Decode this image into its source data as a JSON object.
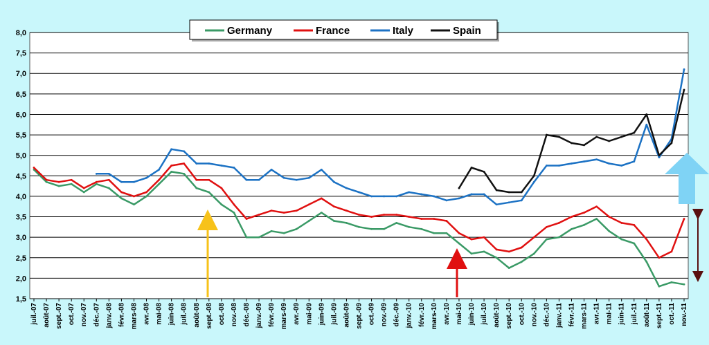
{
  "chart_data": {
    "type": "line",
    "grid": true,
    "legend_position": "top-center",
    "ylim": [
      1.5,
      8.0
    ],
    "yticks": [
      "1,5",
      "2,0",
      "2,5",
      "3,0",
      "3,5",
      "4,0",
      "4,5",
      "5,0",
      "5,5",
      "6,0",
      "6,5",
      "7,0",
      "7,5",
      "8,0"
    ],
    "categories": [
      "juil.-07",
      "août-07",
      "sept.-07",
      "oct.-07",
      "nov.-07",
      "déc.-07",
      "janv.-08",
      "févr.-08",
      "mars-08",
      "avr.-08",
      "mai-08",
      "juin-08",
      "juil.-08",
      "août-08",
      "sept.-08",
      "oct.-08",
      "nov.-08",
      "déc.-08",
      "janv.-09",
      "févr.-09",
      "mars-09",
      "avr.-09",
      "mai-09",
      "juin-09",
      "juil.-09",
      "août-09",
      "sept.-09",
      "oct.-09",
      "nov.-09",
      "déc.-09",
      "janv.-10",
      "févr.-10",
      "mars-10",
      "avr.-10",
      "mai-10",
      "juin-10",
      "juil.-10",
      "août-10",
      "sept.-10",
      "oct.-10",
      "nov.-10",
      "déc.-10",
      "janv.-11",
      "févr.-11",
      "mars-11",
      "avr.-11",
      "mai-11",
      "juin-11",
      "juil.-11",
      "août-11",
      "sept.-11",
      "oct.-11",
      "nov.-11"
    ],
    "series": [
      {
        "name": "Germany",
        "color": "#3a9a66",
        "values": [
          4.65,
          4.35,
          4.25,
          4.3,
          4.1,
          4.3,
          4.2,
          3.95,
          3.8,
          4.0,
          4.3,
          4.6,
          4.55,
          4.2,
          4.1,
          3.8,
          3.6,
          3.0,
          3.0,
          3.15,
          3.1,
          3.2,
          3.4,
          3.6,
          3.4,
          3.35,
          3.25,
          3.2,
          3.2,
          3.35,
          3.25,
          3.2,
          3.1,
          3.1,
          2.85,
          2.6,
          2.65,
          2.5,
          2.25,
          2.4,
          2.6,
          2.95,
          3.0,
          3.2,
          3.3,
          3.45,
          3.15,
          2.95,
          2.85,
          2.4,
          1.8,
          1.9,
          1.85
        ]
      },
      {
        "name": "France",
        "color": "#e01010",
        "values": [
          4.7,
          4.4,
          4.35,
          4.4,
          4.2,
          4.35,
          4.4,
          4.1,
          4.0,
          4.1,
          4.4,
          4.75,
          4.8,
          4.4,
          4.4,
          4.2,
          3.8,
          3.45,
          3.55,
          3.65,
          3.6,
          3.65,
          3.8,
          3.95,
          3.75,
          3.65,
          3.55,
          3.5,
          3.55,
          3.55,
          3.5,
          3.45,
          3.45,
          3.4,
          3.1,
          2.95,
          3.0,
          2.7,
          2.65,
          2.75,
          3.0,
          3.25,
          3.35,
          3.5,
          3.6,
          3.75,
          3.5,
          3.35,
          3.3,
          2.95,
          2.5,
          2.65,
          3.45
        ]
      },
      {
        "name": "Italy",
        "color": "#1c72c4",
        "values": [
          null,
          null,
          null,
          null,
          null,
          4.55,
          4.55,
          4.35,
          4.35,
          4.45,
          4.65,
          5.15,
          5.1,
          4.8,
          4.8,
          4.75,
          4.7,
          4.4,
          4.4,
          4.65,
          4.45,
          4.4,
          4.45,
          4.65,
          4.35,
          4.2,
          4.1,
          4.0,
          4.0,
          4.0,
          4.1,
          4.05,
          4.0,
          3.9,
          3.95,
          4.05,
          4.05,
          3.8,
          3.85,
          3.9,
          4.35,
          4.75,
          4.75,
          4.8,
          4.85,
          4.9,
          4.8,
          4.75,
          4.85,
          5.75,
          4.95,
          5.4,
          7.1
        ]
      },
      {
        "name": "Spain",
        "color": "#111111",
        "values": [
          null,
          null,
          null,
          null,
          null,
          null,
          null,
          null,
          null,
          null,
          null,
          null,
          null,
          null,
          null,
          null,
          null,
          null,
          null,
          null,
          null,
          null,
          null,
          null,
          null,
          null,
          null,
          null,
          null,
          null,
          null,
          null,
          null,
          null,
          4.2,
          4.7,
          4.6,
          4.15,
          4.1,
          4.1,
          4.5,
          5.5,
          5.45,
          5.3,
          5.25,
          5.45,
          5.35,
          5.45,
          5.55,
          6.0,
          5.0,
          5.3,
          6.6
        ]
      }
    ]
  }
}
